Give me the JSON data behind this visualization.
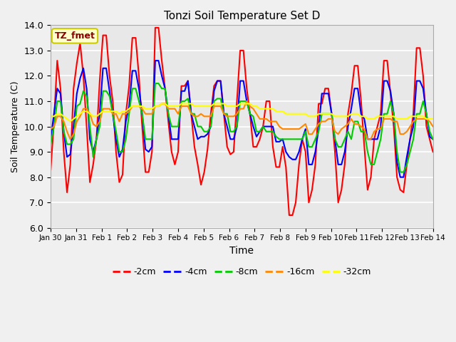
{
  "title": "Tonzi Soil Temperature Set D",
  "xlabel": "Time",
  "ylabel": "Soil Temperature (C)",
  "ylim": [
    6.0,
    14.0
  ],
  "yticks": [
    6.0,
    7.0,
    8.0,
    9.0,
    10.0,
    11.0,
    12.0,
    13.0,
    14.0
  ],
  "xtick_labels": [
    "Jan 30",
    "Jan 31",
    "Feb 1",
    "Feb 2",
    "Feb 3",
    "Feb 4",
    "Feb 5",
    "Feb 6",
    "Feb 7",
    "Feb 8",
    "Feb 9",
    "Feb 10",
    "Feb 11",
    "Feb 12",
    "Feb 13",
    "Feb 14"
  ],
  "background_color": "#e8e8e8",
  "annotation_text": "TZ_fmet",
  "annotation_color": "#8b0000",
  "annotation_bg": "#ffffcc",
  "annotation_border": "#cccc00",
  "series": {
    "neg2cm": {
      "color": "#ff0000",
      "label": "-2cm",
      "values": [
        8.3,
        10.2,
        12.6,
        11.5,
        9.0,
        7.4,
        8.5,
        11.5,
        12.5,
        13.3,
        12.0,
        10.0,
        7.8,
        8.5,
        9.5,
        11.8,
        13.6,
        13.6,
        12.0,
        11.0,
        9.0,
        7.8,
        8.1,
        10.5,
        11.6,
        13.5,
        13.5,
        12.0,
        10.0,
        8.2,
        8.2,
        9.0,
        13.9,
        13.9,
        12.6,
        11.5,
        10.2,
        9.0,
        8.5,
        9.0,
        11.6,
        11.6,
        11.8,
        10.5,
        9.2,
        8.5,
        7.7,
        8.2,
        9.1,
        10.5,
        11.6,
        11.8,
        11.8,
        10.5,
        9.2,
        8.9,
        9.0,
        11.0,
        13.0,
        13.0,
        11.5,
        10.5,
        9.2,
        9.2,
        9.5,
        10.0,
        11.0,
        11.0,
        9.2,
        8.4,
        8.4,
        9.2,
        8.4,
        6.5,
        6.5,
        7.0,
        8.5,
        9.5,
        9.0,
        7.0,
        7.5,
        8.5,
        10.9,
        10.9,
        11.5,
        11.5,
        10.5,
        9.0,
        7.0,
        7.5,
        8.5,
        10.5,
        11.3,
        12.4,
        12.4,
        11.0,
        9.2,
        7.5,
        8.0,
        9.5,
        10.0,
        10.5,
        12.6,
        12.6,
        11.3,
        10.0,
        8.0,
        7.5,
        7.4,
        8.5,
        9.5,
        10.5,
        13.1,
        13.1,
        12.0,
        10.0,
        9.5,
        9.0
      ]
    },
    "neg4cm": {
      "color": "#0000ff",
      "label": "-4cm",
      "values": [
        9.5,
        10.5,
        11.5,
        11.3,
        9.8,
        8.8,
        8.9,
        10.0,
        11.3,
        11.9,
        12.3,
        11.5,
        9.5,
        9.0,
        9.5,
        10.5,
        12.3,
        12.3,
        11.4,
        10.5,
        9.5,
        8.8,
        9.1,
        10.2,
        10.8,
        12.2,
        12.2,
        11.5,
        10.5,
        9.1,
        9.0,
        9.2,
        12.6,
        12.6,
        12.0,
        11.5,
        10.5,
        9.5,
        9.5,
        9.5,
        11.4,
        11.4,
        11.8,
        10.5,
        10.0,
        9.5,
        9.6,
        9.6,
        9.7,
        10.0,
        11.4,
        11.8,
        11.8,
        10.5,
        10.0,
        9.5,
        9.5,
        10.0,
        11.8,
        11.8,
        11.0,
        10.5,
        10.0,
        9.6,
        9.8,
        10.0,
        10.0,
        10.0,
        10.0,
        9.4,
        9.4,
        9.5,
        9.0,
        8.8,
        8.7,
        8.7,
        9.0,
        9.5,
        9.9,
        8.5,
        8.5,
        9.0,
        9.9,
        11.3,
        11.3,
        11.3,
        10.5,
        9.5,
        8.5,
        8.5,
        9.0,
        10.0,
        10.7,
        11.5,
        11.5,
        10.5,
        10.3,
        9.5,
        9.5,
        9.5,
        9.5,
        10.0,
        11.8,
        11.8,
        11.4,
        10.5,
        8.6,
        8.0,
        8.0,
        8.8,
        9.5,
        10.0,
        11.8,
        11.8,
        11.5,
        10.5,
        9.6,
        9.5
      ]
    },
    "neg8cm": {
      "color": "#00cc00",
      "label": "-8cm",
      "values": [
        9.3,
        10.0,
        11.0,
        11.0,
        9.8,
        9.3,
        9.3,
        9.5,
        10.8,
        10.9,
        11.4,
        11.2,
        10.0,
        8.8,
        9.5,
        10.0,
        11.4,
        11.4,
        11.2,
        10.5,
        9.8,
        9.0,
        9.0,
        9.5,
        10.5,
        11.5,
        11.5,
        11.0,
        10.5,
        9.5,
        9.5,
        9.5,
        11.7,
        11.7,
        11.5,
        11.5,
        10.5,
        10.0,
        10.0,
        10.0,
        11.0,
        11.0,
        11.1,
        10.5,
        10.5,
        10.0,
        10.0,
        9.8,
        9.8,
        10.0,
        11.0,
        11.1,
        11.1,
        10.5,
        10.5,
        9.8,
        9.8,
        10.0,
        11.0,
        11.0,
        11.0,
        10.5,
        10.4,
        9.8,
        9.8,
        10.0,
        9.8,
        9.8,
        9.8,
        9.6,
        9.5,
        9.5,
        9.5,
        9.5,
        9.5,
        9.5,
        9.5,
        9.5,
        9.8,
        9.2,
        9.2,
        9.5,
        9.8,
        10.5,
        10.5,
        10.5,
        10.5,
        9.5,
        9.2,
        9.2,
        9.5,
        9.8,
        9.5,
        10.2,
        10.2,
        9.8,
        9.8,
        9.0,
        8.5,
        8.5,
        9.0,
        9.5,
        10.5,
        10.5,
        11.0,
        10.5,
        9.0,
        8.2,
        8.2,
        8.5,
        9.0,
        9.5,
        10.5,
        10.5,
        11.0,
        10.5,
        9.8,
        9.5
      ]
    },
    "neg16cm": {
      "color": "#ff8800",
      "label": "-16cm",
      "values": [
        9.9,
        10.0,
        10.4,
        10.4,
        10.2,
        9.8,
        9.5,
        9.7,
        10.2,
        10.4,
        10.7,
        10.7,
        10.5,
        10.1,
        10.0,
        10.2,
        10.7,
        10.7,
        10.7,
        10.5,
        10.5,
        10.2,
        10.5,
        10.5,
        10.6,
        10.8,
        10.8,
        10.8,
        10.7,
        10.5,
        10.5,
        10.5,
        10.8,
        10.8,
        10.9,
        10.9,
        10.7,
        10.7,
        10.7,
        10.5,
        10.8,
        10.8,
        10.8,
        10.5,
        10.4,
        10.4,
        10.5,
        10.4,
        10.4,
        10.4,
        10.8,
        10.8,
        10.8,
        10.5,
        10.4,
        10.4,
        10.4,
        10.5,
        10.7,
        10.7,
        11.0,
        10.8,
        10.7,
        10.5,
        10.3,
        10.3,
        10.3,
        10.2,
        10.2,
        10.2,
        10.0,
        9.9,
        9.9,
        9.9,
        9.9,
        9.9,
        9.9,
        10.0,
        10.1,
        9.7,
        9.7,
        9.9,
        10.1,
        10.2,
        10.2,
        10.3,
        10.3,
        9.8,
        9.7,
        9.9,
        10.0,
        10.1,
        10.3,
        10.1,
        10.1,
        10.0,
        9.9,
        9.5,
        9.5,
        9.8,
        9.9,
        9.9,
        10.3,
        10.3,
        10.3,
        10.2,
        10.2,
        9.7,
        9.7,
        9.8,
        10.0,
        10.2,
        10.3,
        10.3,
        10.3,
        10.3,
        10.2,
        10.0
      ]
    },
    "neg32cm": {
      "color": "#ffff00",
      "label": "-32cm",
      "values": [
        10.4,
        10.4,
        10.5,
        10.5,
        10.4,
        10.3,
        10.2,
        10.3,
        10.4,
        10.5,
        10.6,
        10.6,
        10.5,
        10.4,
        10.4,
        10.5,
        10.6,
        10.6,
        10.6,
        10.6,
        10.6,
        10.5,
        10.6,
        10.6,
        10.7,
        10.8,
        10.8,
        10.8,
        10.8,
        10.7,
        10.7,
        10.7,
        10.8,
        10.8,
        10.9,
        10.9,
        10.8,
        10.8,
        10.8,
        10.8,
        10.9,
        10.9,
        10.9,
        10.9,
        10.8,
        10.8,
        10.8,
        10.8,
        10.8,
        10.8,
        10.9,
        10.9,
        10.9,
        10.9,
        10.8,
        10.8,
        10.8,
        10.8,
        10.9,
        10.9,
        10.9,
        10.9,
        10.8,
        10.8,
        10.7,
        10.7,
        10.7,
        10.7,
        10.7,
        10.6,
        10.6,
        10.6,
        10.5,
        10.5,
        10.5,
        10.5,
        10.5,
        10.5,
        10.5,
        10.4,
        10.4,
        10.4,
        10.5,
        10.5,
        10.5,
        10.5,
        10.5,
        10.4,
        10.4,
        10.4,
        10.4,
        10.4,
        10.5,
        10.5,
        10.5,
        10.4,
        10.4,
        10.3,
        10.3,
        10.3,
        10.4,
        10.4,
        10.4,
        10.4,
        10.4,
        10.4,
        10.3,
        10.3,
        10.3,
        10.3,
        10.4,
        10.4,
        10.4,
        10.4,
        10.4,
        10.3,
        10.3,
        10.3
      ]
    }
  }
}
